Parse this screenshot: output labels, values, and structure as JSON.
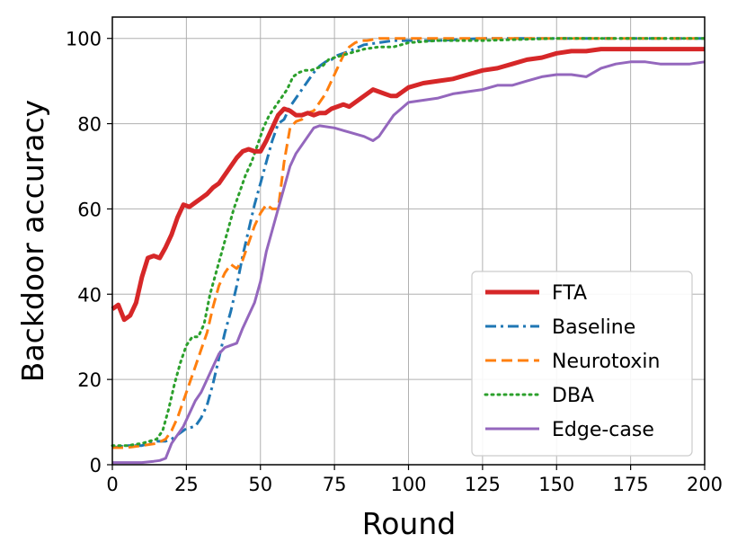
{
  "chart_data": {
    "type": "line",
    "title": "",
    "xlabel": "Round",
    "ylabel": "Backdoor accuracy",
    "xlim": [
      0,
      200
    ],
    "ylim": [
      0,
      105
    ],
    "xticks": [
      0,
      25,
      50,
      75,
      100,
      125,
      150,
      175,
      200
    ],
    "yticks": [
      0,
      20,
      40,
      60,
      80,
      100
    ],
    "grid": true,
    "legend_position": "lower-right",
    "series": [
      {
        "name": "FTA",
        "color": "#d62728",
        "linestyle": "solid",
        "linewidth": "thick",
        "x": [
          0,
          2,
          4,
          6,
          8,
          10,
          12,
          14,
          16,
          18,
          20,
          22,
          24,
          26,
          28,
          30,
          32,
          34,
          36,
          38,
          40,
          42,
          44,
          46,
          48,
          50,
          52,
          54,
          56,
          58,
          60,
          62,
          64,
          66,
          68,
          70,
          72,
          74,
          76,
          78,
          80,
          82,
          84,
          86,
          88,
          90,
          92,
          94,
          96,
          98,
          100,
          105,
          110,
          115,
          120,
          125,
          130,
          135,
          140,
          145,
          150,
          155,
          160,
          165,
          170,
          175,
          180,
          185,
          190,
          195,
          200
        ],
        "values": [
          36.5,
          37.5,
          34,
          35,
          38,
          44,
          48.5,
          49,
          48.5,
          51,
          54,
          58,
          61,
          60.5,
          61.5,
          62.5,
          63.5,
          65,
          66,
          68,
          70,
          72,
          73.5,
          74,
          73.5,
          73.5,
          76,
          79,
          82,
          83.5,
          83,
          82,
          82,
          82.5,
          82,
          82.5,
          82.5,
          83.5,
          84,
          84.5,
          84,
          85,
          86,
          87,
          88,
          87.5,
          87,
          86.5,
          86.5,
          87.5,
          88.5,
          89.5,
          90,
          90.5,
          91.5,
          92.5,
          93,
          94,
          95,
          95.5,
          96.5,
          97,
          97,
          97.5,
          97.5,
          97.5,
          97.5,
          97.5,
          97.5,
          97.5,
          97.5
        ]
      },
      {
        "name": "Baseline",
        "color": "#1f77b4",
        "linestyle": "dashdot",
        "linewidth": "normal",
        "x": [
          0,
          5,
          10,
          15,
          18,
          20,
          22,
          25,
          28,
          30,
          32,
          34,
          36,
          38,
          40,
          42,
          44,
          46,
          48,
          50,
          52,
          54,
          56,
          58,
          60,
          62,
          64,
          66,
          68,
          70,
          72,
          74,
          76,
          78,
          80,
          85,
          90,
          95,
          100,
          110,
          125,
          150,
          175,
          200
        ],
        "values": [
          4,
          4.5,
          4.5,
          5.5,
          5.5,
          6,
          7,
          8.5,
          9,
          11,
          14,
          19,
          25,
          31,
          36,
          42,
          49,
          55,
          61,
          66,
          71,
          76,
          80,
          81,
          84,
          86,
          88,
          90,
          92,
          93.5,
          94.5,
          95,
          96,
          96.5,
          97,
          98.5,
          99,
          99.5,
          99.5,
          99.5,
          100,
          100,
          100,
          100
        ]
      },
      {
        "name": "Neurotoxin",
        "color": "#ff7f0e",
        "linestyle": "dashed",
        "linewidth": "normal",
        "x": [
          0,
          5,
          10,
          15,
          18,
          20,
          22,
          24,
          26,
          28,
          30,
          32,
          34,
          36,
          38,
          40,
          42,
          44,
          46,
          48,
          50,
          52,
          54,
          56,
          58,
          60,
          62,
          64,
          66,
          68,
          70,
          72,
          74,
          76,
          78,
          80,
          82,
          84,
          86,
          90,
          95,
          100,
          110,
          125,
          150,
          175,
          200
        ],
        "values": [
          4,
          4,
          4.5,
          5,
          6,
          8,
          11,
          15,
          19,
          23,
          27,
          31,
          37,
          42,
          45,
          47,
          46,
          48,
          52,
          56,
          59,
          61,
          60,
          60,
          71,
          79,
          80.5,
          81,
          82.5,
          83,
          85,
          87,
          90,
          93,
          96,
          98,
          99,
          99.5,
          99.5,
          100,
          100,
          100,
          100,
          100,
          100,
          100,
          100
        ]
      },
      {
        "name": "DBA",
        "color": "#2ca02c",
        "linestyle": "dotted",
        "linewidth": "normal",
        "x": [
          0,
          5,
          10,
          15,
          17,
          19,
          21,
          23,
          25,
          27,
          29,
          31,
          33,
          35,
          37,
          39,
          41,
          43,
          45,
          47,
          49,
          51,
          53,
          55,
          57,
          59,
          61,
          63,
          65,
          67,
          69,
          71,
          73,
          75,
          80,
          85,
          90,
          95,
          100,
          110,
          125,
          150,
          175,
          200
        ],
        "values": [
          4.5,
          4.5,
          5,
          6,
          8,
          13,
          19,
          24,
          28,
          30,
          30,
          33,
          40,
          45,
          50,
          55,
          60,
          64,
          68,
          71,
          75,
          79,
          82,
          84,
          86,
          88,
          91,
          92,
          92.5,
          92.5,
          93,
          93.5,
          95,
          95.5,
          96.5,
          97.5,
          98,
          98,
          99,
          99.5,
          99.5,
          100,
          100,
          100
        ]
      },
      {
        "name": "Edge-case",
        "color": "#9467bd",
        "linestyle": "solid",
        "linewidth": "normal",
        "x": [
          0,
          5,
          10,
          14,
          16,
          18,
          20,
          22,
          24,
          26,
          28,
          30,
          32,
          34,
          36,
          38,
          40,
          42,
          44,
          46,
          48,
          50,
          52,
          54,
          56,
          58,
          60,
          62,
          64,
          66,
          68,
          70,
          75,
          80,
          85,
          88,
          90,
          95,
          100,
          105,
          110,
          115,
          120,
          125,
          130,
          135,
          140,
          145,
          150,
          155,
          160,
          165,
          170,
          175,
          180,
          185,
          190,
          195,
          200
        ],
        "values": [
          0.5,
          0.5,
          0.5,
          0.8,
          1,
          1.5,
          5,
          7,
          9,
          12,
          15,
          17,
          20,
          23,
          26,
          27.5,
          28,
          28.5,
          32,
          35,
          38,
          43,
          50,
          55,
          60,
          65,
          70,
          73,
          75,
          77,
          79,
          79.5,
          79,
          78,
          77,
          76,
          77,
          82,
          85,
          85.5,
          86,
          87,
          87.5,
          88,
          89,
          89,
          90,
          91,
          91.5,
          91.5,
          91,
          93,
          94,
          94.5,
          94.5,
          94,
          94,
          94,
          94.5
        ]
      }
    ]
  }
}
